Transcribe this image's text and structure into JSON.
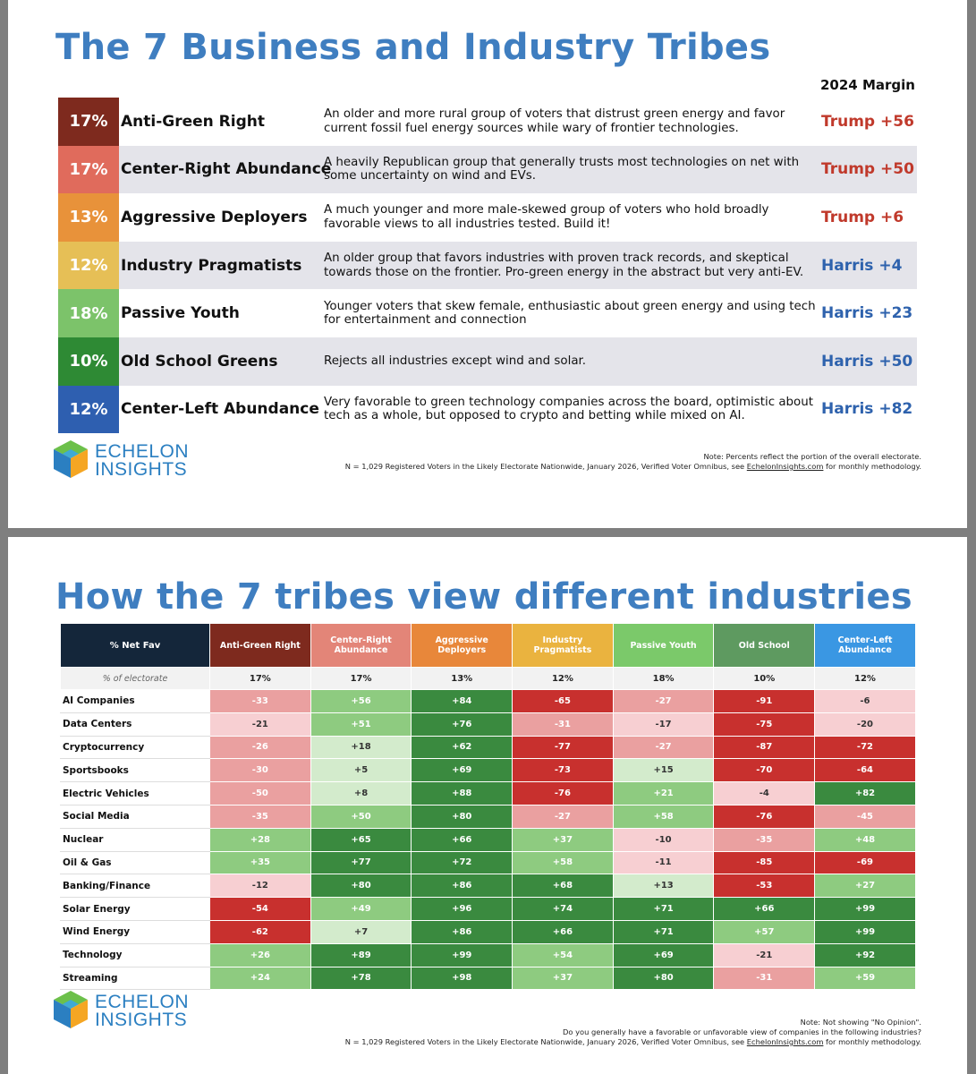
{
  "slide1": {
    "title": "The 7 Business and Industry Tribes",
    "margin_header": "2024 Margin",
    "tribes": [
      {
        "pct": "17%",
        "name": "Anti-Green Right",
        "desc": "An older and more rural group of voters that distrust green energy and favor current fossil fuel energy sources while wary of frontier technologies.",
        "margin": "Trump +56",
        "color": "#7e2a1e",
        "margin_color": "#c0392b"
      },
      {
        "pct": "17%",
        "name": "Center-Right Abundance",
        "desc": "A heavily Republican group that generally trusts most technologies on net with some uncertainty on wind and EVs.",
        "margin": "Trump +50",
        "color": "#e06b5c",
        "margin_color": "#c0392b"
      },
      {
        "pct": "13%",
        "name": "Aggressive Deployers",
        "desc": "A much younger and more male-skewed group of voters who hold broadly favorable views to all industries tested. Build it!",
        "margin": "Trump +6",
        "color": "#e8923a",
        "margin_color": "#c0392b"
      },
      {
        "pct": "12%",
        "name": "Industry Pragmatists",
        "desc": "An older group that favors industries with proven track records, and skeptical towards those on the frontier. Pro-green energy in the abstract but very anti-EV.",
        "margin": "Harris +4",
        "color": "#e6bf56",
        "margin_color": "#2e62ad"
      },
      {
        "pct": "18%",
        "name": "Passive Youth",
        "desc": "Younger voters that skew female, enthusiastic about green energy and using tech for entertainment and connection",
        "margin": "Harris +23",
        "color": "#7cc36a",
        "margin_color": "#2e62ad"
      },
      {
        "pct": "10%",
        "name": "Old School Greens",
        "desc": "Rejects all industries except wind and solar.",
        "margin": "Harris +50",
        "color": "#2e8a34",
        "margin_color": "#2e62ad"
      },
      {
        "pct": "12%",
        "name": "Center-Left Abundance",
        "desc": "Very favorable to green technology companies across the board, optimistic about tech as a whole, but opposed to crypto and betting while mixed on AI.",
        "margin": "Harris +82",
        "color": "#2e5fb0",
        "margin_color": "#2e62ad"
      }
    ],
    "logo": {
      "line1": "ECHELON",
      "line2": "INSIGHTS"
    },
    "note_line1": "Note: Percents reflect the portion of the overall electorate.",
    "note_line2": "N = 1,029 Registered Voters in the Likely Electorate Nationwide, January 2026, Verified Voter Omnibus, see ",
    "note_link": "EchelonInsights.com",
    "note_line2_end": " for monthly methodology."
  },
  "slide2": {
    "title": "How the 7 tribes view different industries",
    "corner_label": "% Net Fav",
    "electorate_label": "% of electorate",
    "columns": [
      {
        "name": "Anti-Green Right",
        "color": "#7e2a1e",
        "electorate": "17%"
      },
      {
        "name": "Center-Right Abundance",
        "color": "#e38578",
        "electorate": "17%"
      },
      {
        "name": "Aggressive Deployers",
        "color": "#e8873a",
        "electorate": "13%"
      },
      {
        "name": "Industry Pragmatists",
        "color": "#eab33f",
        "electorate": "12%"
      },
      {
        "name": "Passive Youth",
        "color": "#7bc96a",
        "electorate": "18%"
      },
      {
        "name": "Old School",
        "color": "#5e9a60",
        "electorate": "10%"
      },
      {
        "name": "Center-Left Abundance",
        "color": "#3a97e3",
        "electorate": "12%"
      }
    ],
    "rows": [
      {
        "industry": "AI Companies",
        "values": [
          "-33",
          "+56",
          "+84",
          "-65",
          "-27",
          "-91",
          "-6"
        ]
      },
      {
        "industry": "Data Centers",
        "values": [
          "-21",
          "+51",
          "+76",
          "-31",
          "-17",
          "-75",
          "-20"
        ]
      },
      {
        "industry": "Cryptocurrency",
        "values": [
          "-26",
          "+18",
          "+62",
          "-77",
          "-27",
          "-87",
          "-72"
        ]
      },
      {
        "industry": "Sportsbooks",
        "values": [
          "-30",
          "+5",
          "+69",
          "-73",
          "+15",
          "-70",
          "-64"
        ]
      },
      {
        "industry": "Electric Vehicles",
        "values": [
          "-50",
          "+8",
          "+88",
          "-76",
          "+21",
          "-4",
          "+82"
        ]
      },
      {
        "industry": "Social Media",
        "values": [
          "-35",
          "+50",
          "+80",
          "-27",
          "+58",
          "-76",
          "-45"
        ]
      },
      {
        "industry": "Nuclear",
        "values": [
          "+28",
          "+65",
          "+66",
          "+37",
          "-10",
          "-35",
          "+48"
        ]
      },
      {
        "industry": "Oil & Gas",
        "values": [
          "+35",
          "+77",
          "+72",
          "+58",
          "-11",
          "-85",
          "-69"
        ]
      },
      {
        "industry": "Banking/Finance",
        "values": [
          "-12",
          "+80",
          "+86",
          "+68",
          "+13",
          "-53",
          "+27"
        ]
      },
      {
        "industry": "Solar Energy",
        "values": [
          "-54",
          "+49",
          "+96",
          "+74",
          "+71",
          "+66",
          "+99"
        ]
      },
      {
        "industry": "Wind Energy",
        "values": [
          "-62",
          "+7",
          "+86",
          "+66",
          "+71",
          "+57",
          "+99"
        ]
      },
      {
        "industry": "Technology",
        "values": [
          "+26",
          "+89",
          "+99",
          "+54",
          "+69",
          "-21",
          "+92"
        ]
      },
      {
        "industry": "Streaming",
        "values": [
          "+24",
          "+78",
          "+98",
          "+37",
          "+80",
          "-31",
          "+59"
        ]
      }
    ],
    "logo": {
      "line1": "ECHELON",
      "line2": "INSIGHTS"
    },
    "note_line1": "Note: Not showing \"No Opinion\".",
    "note_line2": "Do you generally have a favorable or unfavorable view of companies in the following industries?",
    "note_line3": "N = 1,029 Registered Voters in the Likely Electorate Nationwide, January 2026, Verified Voter Omnibus, see ",
    "note_link": "EchelonInsights.com",
    "note_line3_end": " for monthly methodology."
  }
}
